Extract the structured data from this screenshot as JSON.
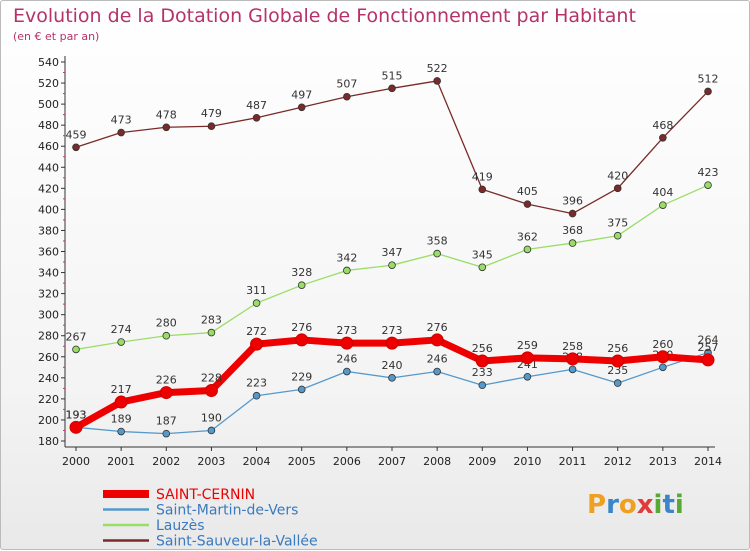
{
  "title": "Evolution de la Dotation Globale de Fonctionnement par Habitant",
  "subtitle": "(en € et par an)",
  "logo": {
    "letters": [
      "P",
      "r",
      "o",
      "x",
      "i",
      "t",
      "i"
    ],
    "colors": [
      "#f0a020",
      "#3a86c8",
      "#f0a020",
      "#e23a3a",
      "#55aa33",
      "#3a86c8",
      "#55aa33"
    ]
  },
  "chart_data": {
    "type": "line",
    "title": "Evolution de la Dotation Globale de Fonctionnement par Habitant",
    "ylabel": "(en € et par an)",
    "xlabel": "",
    "ylim": [
      180,
      540
    ],
    "ytick_step": 20,
    "grid": false,
    "categories": [
      "2000",
      "2001",
      "2002",
      "2003",
      "2004",
      "2005",
      "2006",
      "2007",
      "2008",
      "2009",
      "2010",
      "2011",
      "2012",
      "2013",
      "2014"
    ],
    "series": [
      {
        "name": "Saint-Sauveur-la-Vallée",
        "color": "#7a2a2a",
        "values": [
          459,
          473,
          478,
          479,
          487,
          497,
          507,
          515,
          522,
          419,
          405,
          396,
          420,
          468,
          512
        ]
      },
      {
        "name": "Lauzès",
        "color": "#99dd66",
        "values": [
          267,
          274,
          280,
          283,
          311,
          328,
          342,
          347,
          358,
          345,
          362,
          368,
          375,
          404,
          423
        ]
      },
      {
        "name": "Saint-Martin-de-Vers",
        "color": "#5599cc",
        "values": [
          193,
          189,
          187,
          190,
          223,
          229,
          246,
          240,
          246,
          233,
          241,
          248,
          235,
          250,
          264
        ]
      },
      {
        "name": "SAINT-CERNIN",
        "color": "#ee0000",
        "values": [
          193,
          217,
          226,
          228,
          272,
          276,
          273,
          273,
          276,
          256,
          259,
          258,
          256,
          260,
          257
        ]
      }
    ],
    "legend": [
      "SAINT-CERNIN",
      "Saint-Martin-de-Vers",
      "Lauzès",
      "Saint-Sauveur-la-Vallée"
    ]
  }
}
